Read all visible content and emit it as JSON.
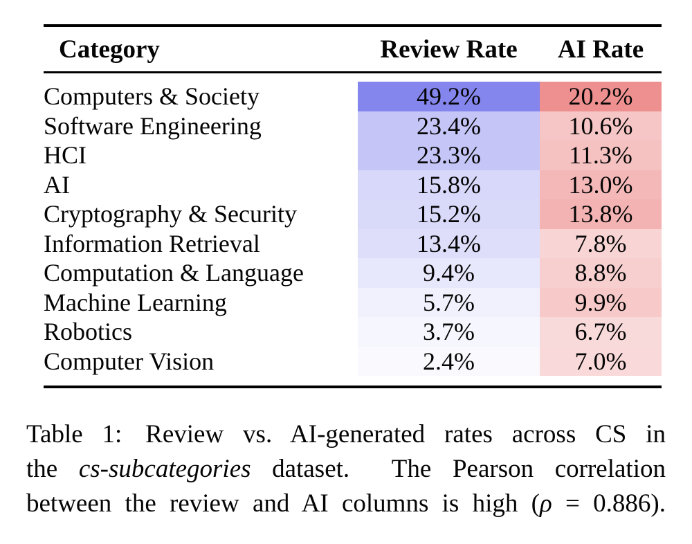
{
  "table": {
    "headers": [
      "Category",
      "Review Rate",
      "AI Rate"
    ],
    "heatmap": {
      "review_base_color": "#8486ee",
      "ai_base_color": "#ee9090",
      "min_color": "#ffffff"
    },
    "rows": [
      {
        "category": "Computers & Society",
        "review": "49.2%",
        "ai": "20.2%",
        "review_value": 49.2,
        "ai_value": 20.2
      },
      {
        "category": "Software Engineering",
        "review": "23.4%",
        "ai": "10.6%",
        "review_value": 23.4,
        "ai_value": 10.6
      },
      {
        "category": "HCI",
        "review": "23.3%",
        "ai": "11.3%",
        "review_value": 23.3,
        "ai_value": 11.3
      },
      {
        "category": "AI",
        "review": "15.8%",
        "ai": "13.0%",
        "review_value": 15.8,
        "ai_value": 13.0
      },
      {
        "category": "Cryptography & Security",
        "review": "15.2%",
        "ai": "13.8%",
        "review_value": 15.2,
        "ai_value": 13.8
      },
      {
        "category": "Information Retrieval",
        "review": "13.4%",
        "ai": "7.8%",
        "review_value": 13.4,
        "ai_value": 7.8
      },
      {
        "category": "Computation & Language",
        "review": "9.4%",
        "ai": "8.8%",
        "review_value": 9.4,
        "ai_value": 8.8
      },
      {
        "category": "Machine Learning",
        "review": "5.7%",
        "ai": "9.9%",
        "review_value": 5.7,
        "ai_value": 9.9
      },
      {
        "category": "Robotics",
        "review": "3.7%",
        "ai": "6.7%",
        "review_value": 3.7,
        "ai_value": 6.7
      },
      {
        "category": "Computer Vision",
        "review": "2.4%",
        "ai": "7.0%",
        "review_value": 2.4,
        "ai_value": 7.0
      }
    ]
  },
  "caption": {
    "label": "Table 1:",
    "line1": " Review vs. AI-generated rates across CS in",
    "line2_pre": "the ",
    "line2_italic": "cs-subcategories",
    "line2_post": " dataset.  The Pearson correlation",
    "line3_pre": "between the review and AI columns is high (",
    "line3_italic": "ρ",
    "line3_post": " = 0.886)."
  }
}
